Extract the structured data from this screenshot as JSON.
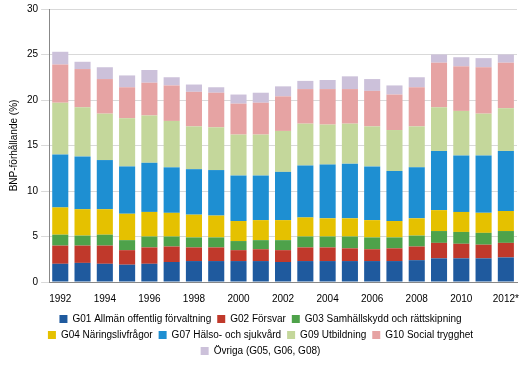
{
  "chart_data": {
    "type": "bar",
    "stacked": true,
    "grid": true,
    "legend": "bottom",
    "y_label": "BNP-förhållande (%)",
    "categories": [
      "1992",
      null,
      "1994",
      null,
      "1996",
      null,
      "1998",
      null,
      "2000",
      null,
      "2002",
      null,
      "2004",
      null,
      "2006",
      null,
      "2008",
      null,
      "2010",
      null,
      "2012*"
    ],
    "ylim": [
      0,
      30
    ],
    "yticks": [
      0,
      5,
      10,
      15,
      20,
      25,
      30
    ],
    "series": [
      {
        "name": "G01 Allmän offentlig förvaltning",
        "color": "#1f5a9e",
        "values": [
          2.0,
          2.1,
          2.0,
          1.9,
          2.0,
          2.2,
          2.3,
          2.3,
          2.3,
          2.3,
          2.2,
          2.3,
          2.3,
          2.3,
          2.3,
          2.3,
          2.4,
          2.6,
          2.6,
          2.6,
          2.7
        ]
      },
      {
        "name": "G02 Försvar",
        "color": "#c0392b",
        "values": [
          2.0,
          1.9,
          2.0,
          1.6,
          1.8,
          1.7,
          1.5,
          1.5,
          1.2,
          1.3,
          1.3,
          1.5,
          1.5,
          1.4,
          1.3,
          1.4,
          1.5,
          1.7,
          1.6,
          1.5,
          1.6
        ]
      },
      {
        "name": "G03 Samhällskydd och rättskipning",
        "color": "#4ea24a",
        "values": [
          1.2,
          1.1,
          1.2,
          1.1,
          1.2,
          1.1,
          1.1,
          1.1,
          1.0,
          1.0,
          1.1,
          1.2,
          1.2,
          1.3,
          1.3,
          1.2,
          1.2,
          1.3,
          1.3,
          1.3,
          1.3
        ]
      },
      {
        "name": "G04 Näringslivfrågor",
        "color": "#e5c100",
        "values": [
          3.0,
          2.9,
          2.8,
          2.9,
          2.7,
          2.6,
          2.5,
          2.4,
          2.2,
          2.2,
          2.2,
          2.1,
          2.0,
          2.0,
          1.9,
          1.8,
          1.9,
          2.3,
          2.2,
          2.2,
          2.2
        ]
      },
      {
        "name": "G07 Hälso- och sjukvård",
        "color": "#1e8fd2",
        "values": [
          5.8,
          5.8,
          5.4,
          5.2,
          5.4,
          5.0,
          5.0,
          5.0,
          5.0,
          4.9,
          5.3,
          5.7,
          5.9,
          6.0,
          5.9,
          5.5,
          5.6,
          6.5,
          6.2,
          6.3,
          6.6
        ]
      },
      {
        "name": "G09 Utbildning",
        "color": "#c4d79b",
        "values": [
          5.7,
          5.4,
          5.1,
          5.3,
          5.2,
          5.1,
          4.7,
          4.7,
          4.5,
          4.5,
          4.5,
          4.6,
          4.4,
          4.4,
          4.4,
          4.5,
          4.5,
          4.8,
          4.9,
          4.6,
          4.7
        ]
      },
      {
        "name": "G10 Social trygghet",
        "color": "#e6a3a3",
        "values": [
          4.2,
          4.2,
          3.8,
          3.4,
          3.6,
          3.9,
          3.8,
          3.8,
          3.4,
          3.5,
          3.8,
          3.8,
          3.9,
          3.8,
          3.9,
          3.9,
          4.3,
          4.9,
          4.9,
          5.1,
          5.0
        ]
      },
      {
        "name": "Övriga (G05, G06, G08)",
        "color": "#ccc1da",
        "values": [
          1.4,
          0.8,
          1.3,
          1.3,
          1.4,
          0.9,
          0.8,
          0.6,
          1.0,
          1.1,
          1.1,
          0.9,
          1.0,
          1.4,
          1.3,
          1.0,
          1.1,
          0.9,
          1.0,
          1.0,
          0.9
        ]
      }
    ]
  }
}
